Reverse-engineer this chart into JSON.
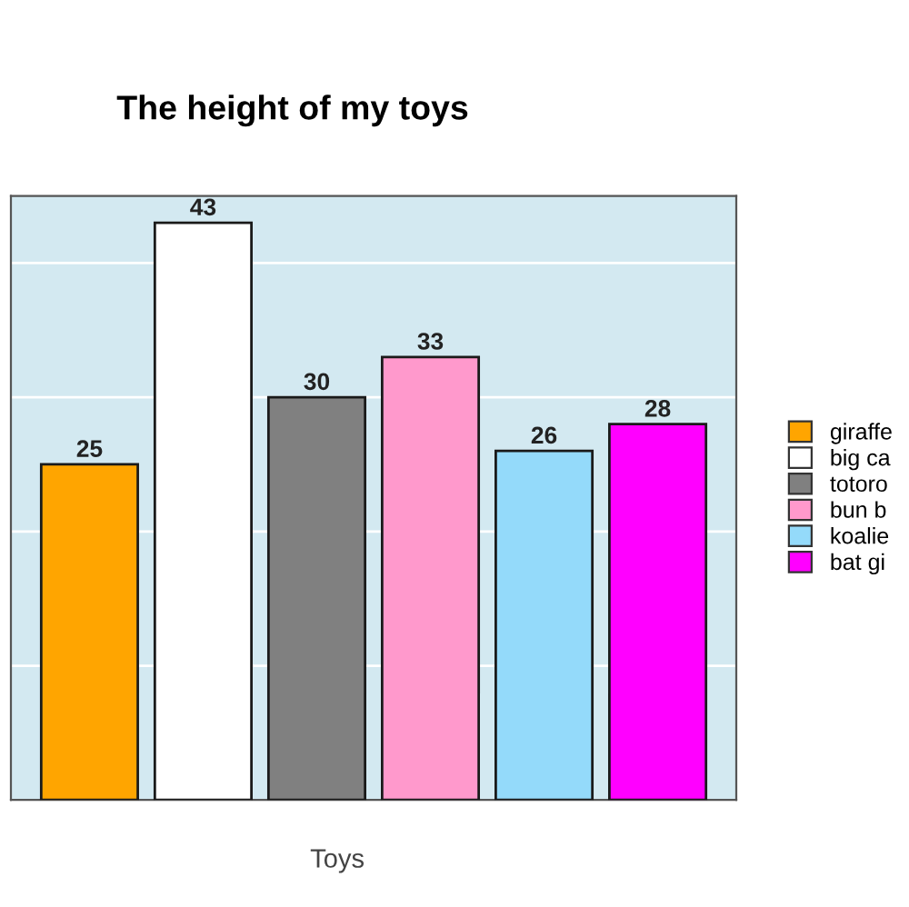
{
  "chart_data": {
    "type": "bar",
    "title": "The height of my toys",
    "xlabel": "Toys",
    "categories": [
      null
    ],
    "series": [
      {
        "name": "giraffe",
        "color": "#ffa500",
        "values": [
          25
        ]
      },
      {
        "name": "big ca",
        "color": "#ffffff",
        "values": [
          43
        ]
      },
      {
        "name": "totoro",
        "color": "#808080",
        "values": [
          30
        ]
      },
      {
        "name": "bun b",
        "color": "#ff99cc",
        "values": [
          33
        ]
      },
      {
        "name": "koalie",
        "color": "#94dafa",
        "values": [
          26
        ]
      },
      {
        "name": "bat gi",
        "color": "#ff00ff",
        "values": [
          28
        ]
      }
    ],
    "ylim": [
      0,
      45
    ],
    "yticks": [
      {
        "value": 10,
        "label": null
      },
      {
        "value": 20,
        "label": null
      },
      {
        "value": 30,
        "label": null
      },
      {
        "value": 40,
        "label": null
      }
    ],
    "grid": "y",
    "legend": "right",
    "data_labels": true
  }
}
